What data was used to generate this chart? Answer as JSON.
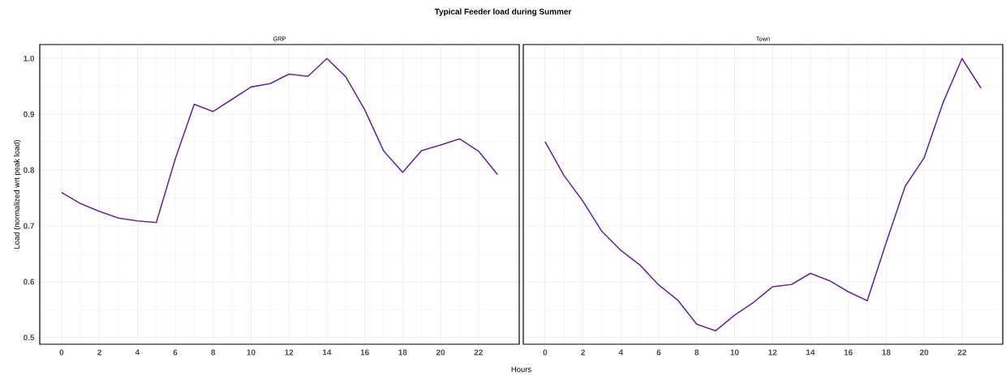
{
  "chart_data": [
    {
      "type": "line",
      "title": "Typical Feeder load during Summer",
      "subtitle": "GRP",
      "xlabel": "Hours",
      "ylabel": "Load (normalized wrt peak load)",
      "x": [
        0,
        1,
        2,
        3,
        4,
        5,
        6,
        7,
        8,
        9,
        10,
        11,
        12,
        13,
        14,
        15,
        16,
        17,
        18,
        19,
        20,
        21,
        22,
        23
      ],
      "values": [
        0.76,
        0.74,
        0.726,
        0.714,
        0.709,
        0.706,
        0.82,
        0.918,
        0.905,
        0.927,
        0.949,
        0.955,
        0.972,
        0.968,
        1.0,
        0.967,
        0.908,
        0.834,
        0.796,
        0.835,
        0.845,
        0.856,
        0.834,
        0.792
      ],
      "color": "#6b2c91",
      "xlim": [
        -1.15,
        24.15
      ],
      "ylim": [
        0.488,
        1.025
      ],
      "xticks": [
        0,
        2,
        4,
        6,
        8,
        10,
        12,
        14,
        16,
        18,
        20,
        22
      ],
      "yticks": [
        0.5,
        0.6,
        0.7,
        0.8,
        0.9,
        {
          "value": 1.0,
          "label": "1.0"
        }
      ],
      "grid": true
    },
    {
      "type": "line",
      "title": "Town",
      "x": [
        0,
        1,
        2,
        3,
        4,
        5,
        6,
        7,
        8,
        9,
        10,
        11,
        12,
        13,
        14,
        15,
        16,
        17,
        18,
        19,
        20,
        21,
        22,
        23
      ],
      "values": [
        0.851,
        0.79,
        0.744,
        0.69,
        0.656,
        0.63,
        0.594,
        0.567,
        0.524,
        0.512,
        0.54,
        0.563,
        0.591,
        0.595,
        0.615,
        0.602,
        0.582,
        0.566,
        0.67,
        0.771,
        0.822,
        0.921,
        1.0,
        0.947
      ],
      "color": "#6b2c91",
      "xlim": [
        -1.15,
        24.15
      ],
      "ylim": [
        0.488,
        1.025
      ],
      "xticks": [
        0,
        2,
        4,
        6,
        8,
        10,
        12,
        14,
        16,
        18,
        20,
        22
      ],
      "yticks": [
        0.5,
        0.6,
        0.7,
        0.8,
        0.9,
        1.0
      ],
      "grid": true,
      "tick_labels": "x"
    }
  ]
}
